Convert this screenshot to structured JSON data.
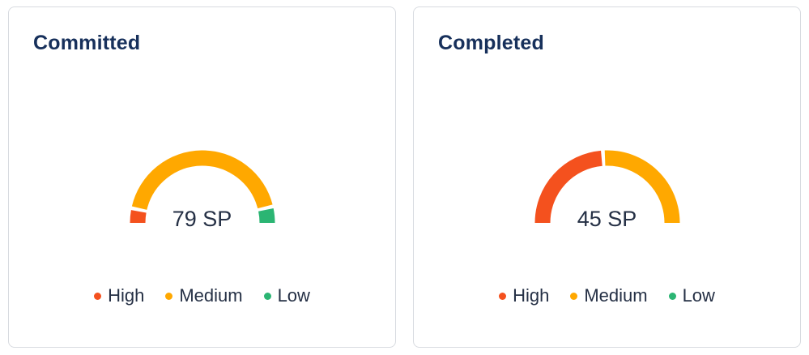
{
  "theme": {
    "title_color": "#17305B",
    "text_color": "#253045",
    "card_border": "#d8dbe0",
    "high_color": "#F4511E",
    "medium_color": "#FFA800",
    "low_color": "#2BB573"
  },
  "chart_data": [
    {
      "type": "gauge",
      "title": "Committed",
      "value_label": "79 SP",
      "layout": {
        "shape": "half-donut",
        "start_angle_deg": 180,
        "end_angle_deg": 0,
        "legend_position": "bottom",
        "gap_between_segments_deg": 3
      },
      "segments": [
        {
          "name": "High",
          "color": "#F4511E",
          "fraction": 0.065
        },
        {
          "name": "Medium",
          "color": "#FFA800",
          "fraction": 0.862
        },
        {
          "name": "Low",
          "color": "#2BB573",
          "fraction": 0.073
        }
      ]
    },
    {
      "type": "gauge",
      "title": "Completed",
      "value_label": "45 SP",
      "layout": {
        "shape": "half-donut",
        "start_angle_deg": 180,
        "end_angle_deg": 0,
        "legend_position": "bottom",
        "gap_between_segments_deg": 3
      },
      "segments": [
        {
          "name": "High",
          "color": "#F4511E",
          "fraction": 0.48
        },
        {
          "name": "Medium",
          "color": "#FFA800",
          "fraction": 0.52
        },
        {
          "name": "Low",
          "color": "#2BB573",
          "fraction": 0
        }
      ]
    }
  ]
}
